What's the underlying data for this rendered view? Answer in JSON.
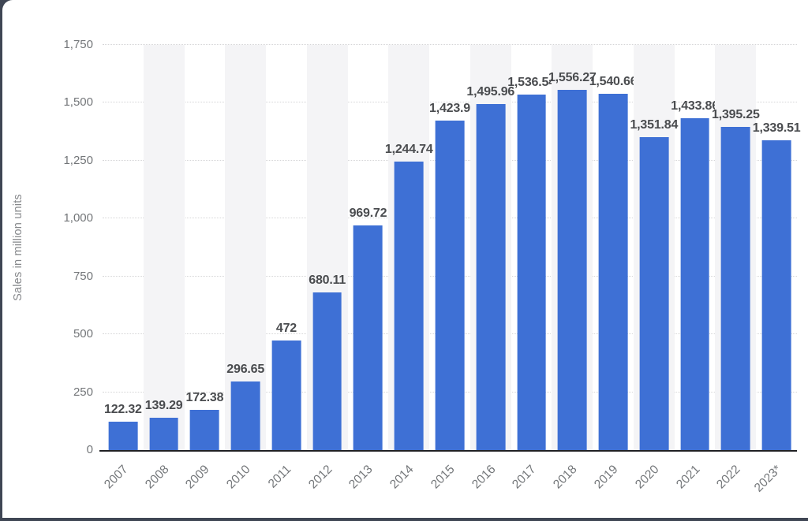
{
  "chart_data": {
    "type": "bar",
    "title": "",
    "xlabel": "",
    "ylabel": "Sales in million units",
    "categories": [
      "2007",
      "2008",
      "2009",
      "2010",
      "2011",
      "2012",
      "2013",
      "2014",
      "2015",
      "2016",
      "2017",
      "2018",
      "2019",
      "2020",
      "2021",
      "2022",
      "2023*"
    ],
    "values": [
      122.32,
      139.29,
      172.38,
      296.65,
      472,
      680.11,
      969.72,
      1244.74,
      1423.9,
      1495.96,
      1536.54,
      1556.27,
      1540.66,
      1351.84,
      1433.86,
      1395.25,
      1339.51
    ],
    "value_labels": [
      "122.32",
      "139.29",
      "172.38",
      "296.65",
      "472",
      "680.11",
      "969.72",
      "1,244.74",
      "1,423.9",
      "1,495.96",
      "1,536.54",
      "1,556.27",
      "1,540.66",
      "1,351.84",
      "1,433.86",
      "1,395.25",
      "1,339.51"
    ],
    "ylim": [
      0,
      1750
    ],
    "ytick_values": [
      0,
      250,
      500,
      750,
      1000,
      1250,
      1500,
      1750
    ],
    "ytick_labels": [
      "0",
      "250",
      "500",
      "750",
      "1,000",
      "1,250",
      "1,500",
      "1,750"
    ],
    "grid": "horizontal-dotted",
    "legend": "none",
    "column_banding": "alternate columns shaded, starting with 2008"
  },
  "colors": {
    "bar": "#3e70d5",
    "band": "#f4f4f6",
    "grid": "#d5d5d7",
    "axis_line": "#202124",
    "value_label": "#4a4c4f",
    "tick_label": "#737679",
    "axis_title": "#86888b",
    "frame": "#3f4654",
    "background": "#ffffff"
  }
}
